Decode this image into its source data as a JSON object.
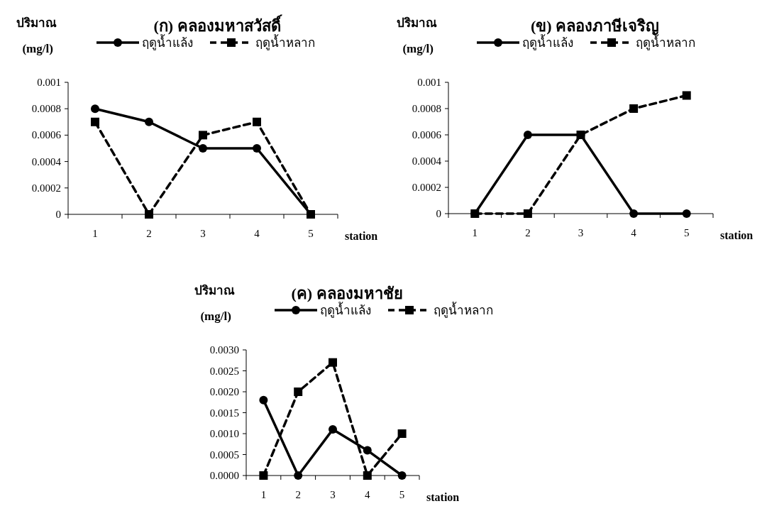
{
  "chart_data": [
    {
      "type": "line",
      "title": "(ก) คลองมหาสวัสดิ์",
      "ylabel": "ปริมาณ (mg/l)",
      "xlabel": "station",
      "categories": [
        "1",
        "2",
        "3",
        "4",
        "5"
      ],
      "ylim": [
        0,
        0.001
      ],
      "yticks": [
        0,
        0.0002,
        0.0004,
        0.0006,
        0.0008,
        0.001
      ],
      "grid": false,
      "legend": "top",
      "series": [
        {
          "name": "ฤดูน้ำแล้ง",
          "color": "#000000",
          "marker": "circle",
          "line_style": "solid",
          "values": [
            0.0008,
            0.0007,
            0.0005,
            0.0005,
            0
          ]
        },
        {
          "name": "ฤดูน้ำหลาก",
          "color": "#000000",
          "marker": "square",
          "line_style": "dashed",
          "values": [
            0.0007,
            0,
            0.0006,
            0.0007,
            0
          ]
        }
      ]
    },
    {
      "type": "line",
      "title": "(ข) คลองภาษีเจริญ",
      "ylabel": "ปริมาณ (mg/l)",
      "xlabel": "station",
      "categories": [
        "1",
        "2",
        "3",
        "4",
        "5"
      ],
      "ylim": [
        0,
        0.001
      ],
      "yticks": [
        0,
        0.0002,
        0.0004,
        0.0006,
        0.0008,
        0.001
      ],
      "grid": false,
      "legend": "top",
      "series": [
        {
          "name": "ฤดูน้ำแล้ง",
          "color": "#000000",
          "marker": "circle",
          "line_style": "solid",
          "values": [
            0,
            0.0006,
            0.0006,
            0,
            0
          ]
        },
        {
          "name": "ฤดูน้ำหลาก",
          "color": "#000000",
          "marker": "square",
          "line_style": "dashed",
          "values": [
            0,
            0,
            0.0006,
            0.0008,
            0.0009
          ]
        }
      ]
    },
    {
      "type": "line",
      "title": "(ค) คลองมหาชัย",
      "ylabel": "ปริมาณ (mg/l)",
      "xlabel": "station",
      "categories": [
        "1",
        "2",
        "3",
        "4",
        "5"
      ],
      "ylim": [
        0,
        0.003
      ],
      "yticks": [
        {
          "value": 0,
          "label": "0.0000"
        },
        {
          "value": 0.0005,
          "label": "0.0005"
        },
        {
          "value": 0.001,
          "label": "0.0010"
        },
        {
          "value": 0.0015,
          "label": "0.0015"
        },
        {
          "value": 0.002,
          "label": "0.0020"
        },
        {
          "value": 0.0025,
          "label": "0.0025"
        },
        {
          "value": 0.003,
          "label": "0.0030"
        }
      ],
      "grid": false,
      "legend": "top",
      "series": [
        {
          "name": "ฤดูน้ำแล้ง",
          "color": "#000000",
          "marker": "circle",
          "line_style": "solid",
          "values": [
            0.0018,
            0,
            0.0011,
            0.0006,
            0
          ]
        },
        {
          "name": "ฤดูน้ำหลาก",
          "color": "#000000",
          "marker": "square",
          "line_style": "dashed",
          "values": [
            0,
            0.002,
            0.0027,
            0,
            0.001
          ]
        }
      ]
    }
  ]
}
